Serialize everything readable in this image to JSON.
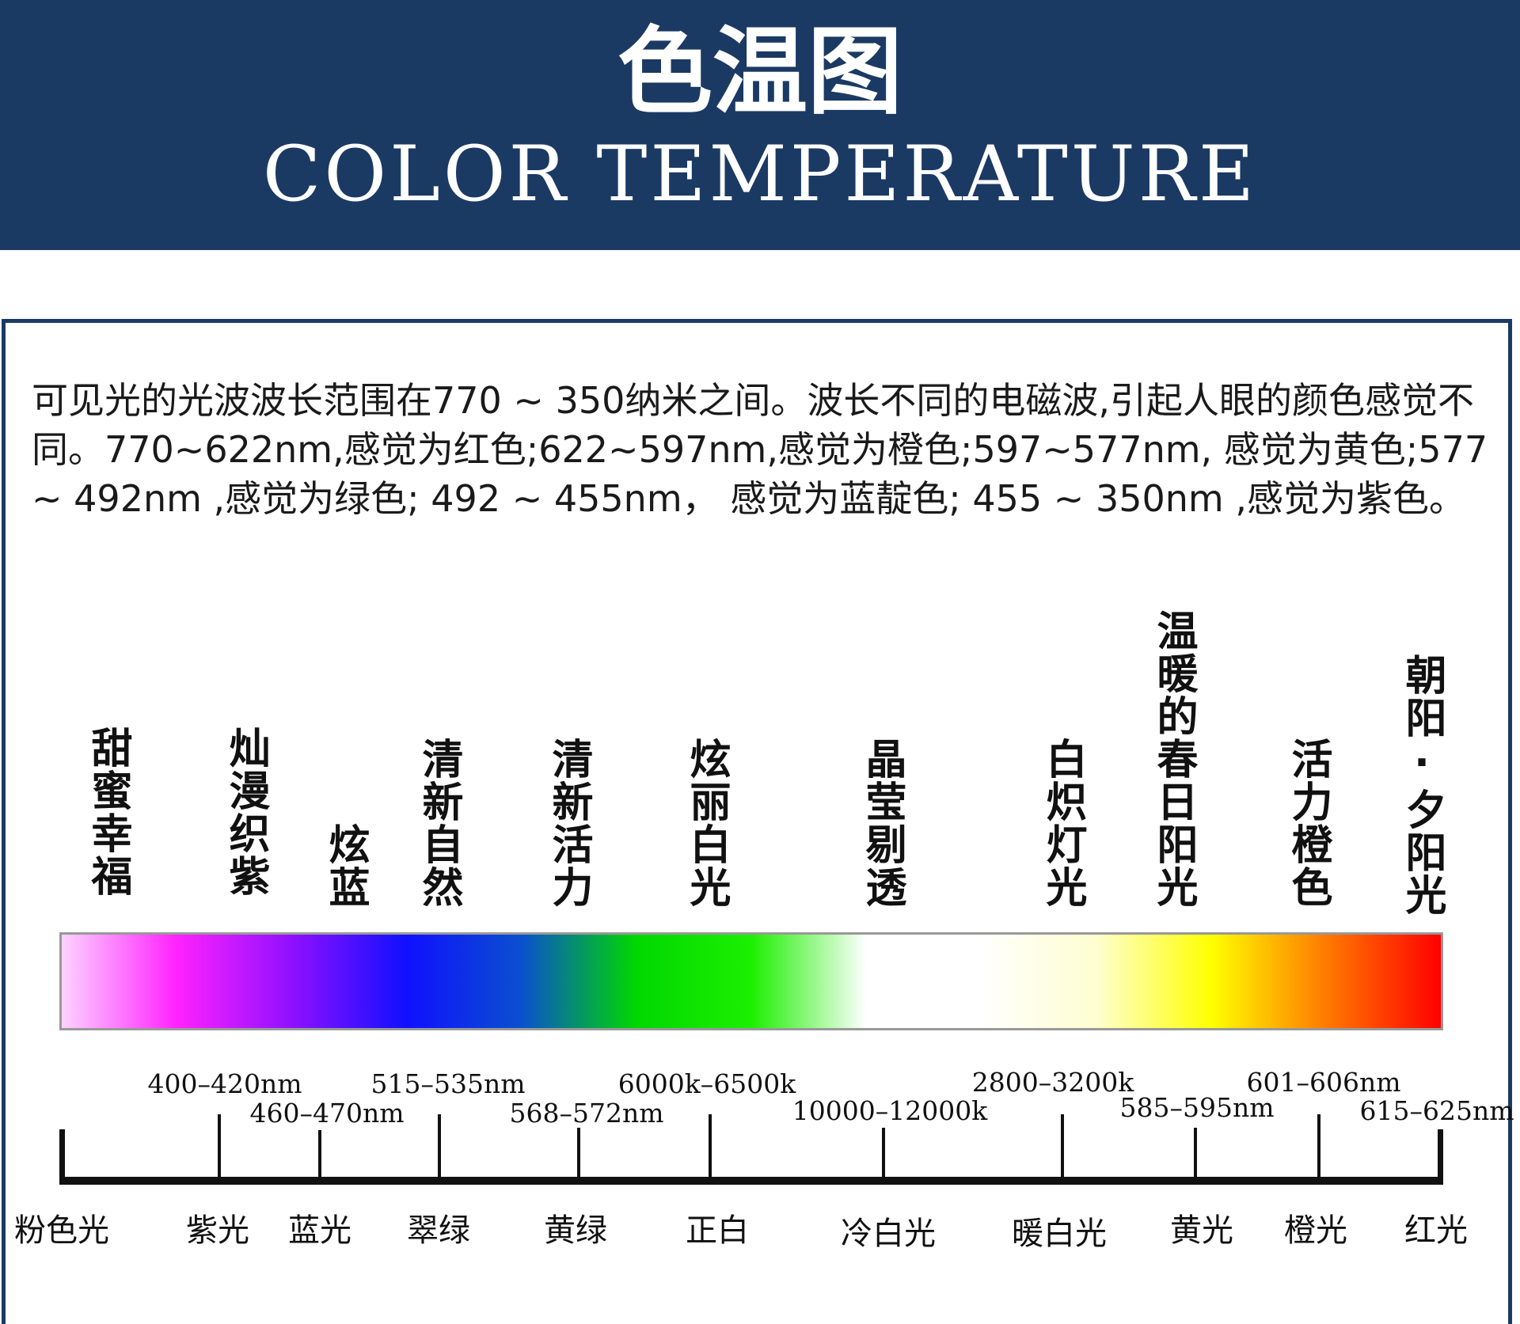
{
  "header": {
    "title_cn": "色温图",
    "title_en": "COLOR TEMPERATURE",
    "bg_color": "#1b3a63"
  },
  "description": "可见光的光波波长范围在770 ~ 350纳米之间。波长不同的电磁波,引起人眼的颜色感觉不同。770~622nm,感觉为红色;622~597nm,感觉为橙色;597~577nm, 感觉为黄色;577 ~ 492nm ,感觉为绿色; 492 ~ 455nm， 感觉为蓝靛色; 455 ~ 350nm ,感觉为紫色。",
  "moods": [
    "甜蜜幸福",
    "灿漫织紫",
    "炫蓝",
    "清新自然",
    "清新活力",
    "炫丽白光",
    "晶莹剔透",
    "白炽灯光",
    "温暖的春日阳光",
    "活力橙色",
    "朝阳·夕阳光"
  ],
  "spectrum_colors": [
    "#fbd3ff",
    "#ff22ff",
    "#8f10ff",
    "#1010ff",
    "#0a50cf",
    "#00d800",
    "#1cf000",
    "#ffffff",
    "#ffffff",
    "#fefed0",
    "#ffff00",
    "#ff7a00",
    "#ff0000"
  ],
  "ranges": [
    "400–420nm",
    "460–470nm",
    "515–535nm",
    "568–572nm",
    "6000k–6500k",
    "10000–12000k",
    "2800–3200k",
    "585–595nm",
    "601–606nm",
    "615–625nm"
  ],
  "light_names": [
    "粉色光",
    "紫光",
    "蓝光",
    "翠绿",
    "黄绿",
    "正白",
    "冷白光",
    "暖白光",
    "黄光",
    "橙光",
    "红光"
  ]
}
